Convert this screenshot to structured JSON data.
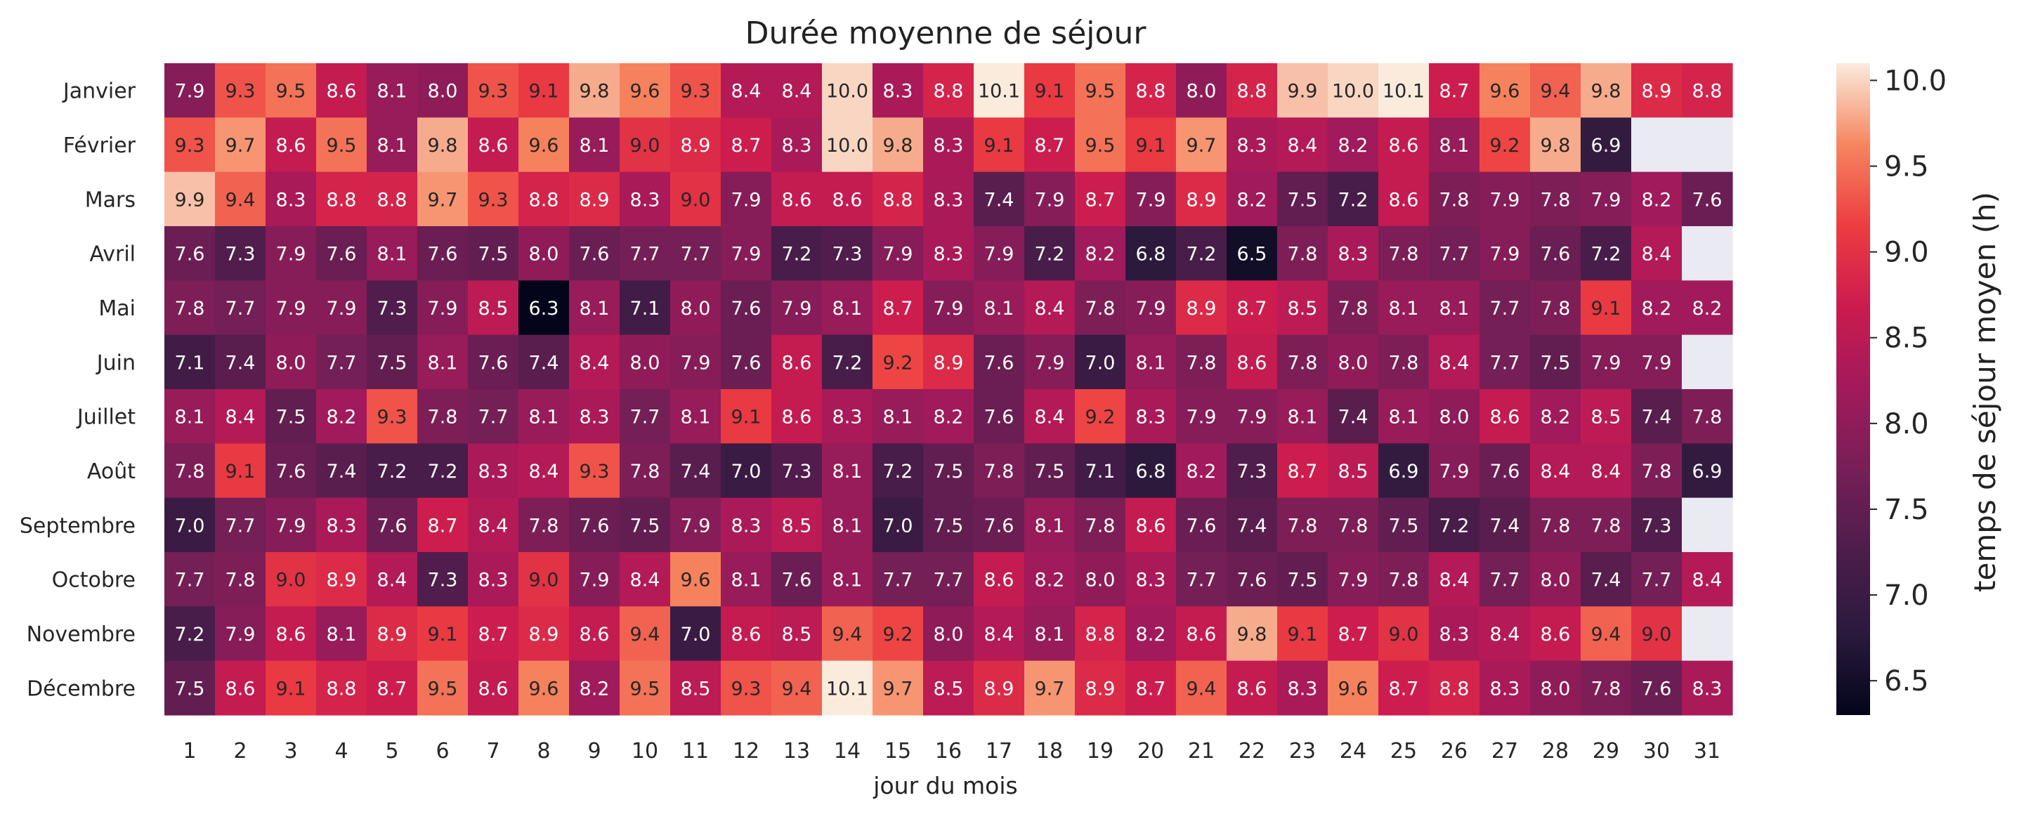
{
  "chart_data": {
    "type": "heatmap",
    "title": "Durée moyenne de séjour",
    "xlabel": "jour du mois",
    "ylabel": "",
    "x": [
      "1",
      "2",
      "3",
      "4",
      "5",
      "6",
      "7",
      "8",
      "9",
      "10",
      "11",
      "12",
      "13",
      "14",
      "15",
      "16",
      "17",
      "18",
      "19",
      "20",
      "21",
      "22",
      "23",
      "24",
      "25",
      "26",
      "27",
      "28",
      "29",
      "30",
      "31"
    ],
    "y": [
      "Janvier",
      "Février",
      "Mars",
      "Avril",
      "Mai",
      "Juin",
      "Juillet",
      "Août",
      "Septembre",
      "Octobre",
      "Novembre",
      "Décembre"
    ],
    "values": [
      [
        7.9,
        9.3,
        9.5,
        8.6,
        8.1,
        8.0,
        9.3,
        9.1,
        9.8,
        9.6,
        9.3,
        8.4,
        8.4,
        10.0,
        8.3,
        8.8,
        10.1,
        9.1,
        9.5,
        8.8,
        8.0,
        8.8,
        9.9,
        10.0,
        10.1,
        8.7,
        9.6,
        9.4,
        9.8,
        8.9,
        8.8
      ],
      [
        9.3,
        9.7,
        8.6,
        9.5,
        8.1,
        9.8,
        8.6,
        9.6,
        8.1,
        9.0,
        8.9,
        8.7,
        8.3,
        10.0,
        9.8,
        8.3,
        9.1,
        8.7,
        9.5,
        9.1,
        9.7,
        8.3,
        8.4,
        8.2,
        8.6,
        8.1,
        9.2,
        9.8,
        6.9,
        null,
        null
      ],
      [
        9.9,
        9.4,
        8.3,
        8.8,
        8.8,
        9.7,
        9.3,
        8.8,
        8.9,
        8.3,
        9.0,
        7.9,
        8.6,
        8.6,
        8.8,
        8.3,
        7.4,
        7.9,
        8.7,
        7.9,
        8.9,
        8.2,
        7.5,
        7.2,
        8.6,
        7.8,
        7.9,
        7.8,
        7.9,
        8.2,
        7.6
      ],
      [
        7.6,
        7.3,
        7.9,
        7.6,
        8.1,
        7.6,
        7.5,
        8.0,
        7.6,
        7.7,
        7.7,
        7.9,
        7.2,
        7.3,
        7.9,
        8.3,
        7.9,
        7.2,
        8.2,
        6.8,
        7.2,
        6.5,
        7.8,
        8.3,
        7.8,
        7.7,
        7.9,
        7.6,
        7.2,
        8.4,
        null
      ],
      [
        7.8,
        7.7,
        7.9,
        7.9,
        7.3,
        7.9,
        8.5,
        6.3,
        8.1,
        7.1,
        8.0,
        7.6,
        7.9,
        8.1,
        8.7,
        7.9,
        8.1,
        8.4,
        7.8,
        7.9,
        8.9,
        8.7,
        8.5,
        7.8,
        8.1,
        8.1,
        7.7,
        7.8,
        9.1,
        8.2,
        8.2
      ],
      [
        7.1,
        7.4,
        8.0,
        7.7,
        7.5,
        8.1,
        7.6,
        7.4,
        8.4,
        8.0,
        7.9,
        7.6,
        8.6,
        7.2,
        9.2,
        8.9,
        7.6,
        7.9,
        7.0,
        8.1,
        7.8,
        8.6,
        7.8,
        8.0,
        7.8,
        8.4,
        7.7,
        7.5,
        7.9,
        7.9,
        null
      ],
      [
        8.1,
        8.4,
        7.5,
        8.2,
        9.3,
        7.8,
        7.7,
        8.1,
        8.3,
        7.7,
        8.1,
        9.1,
        8.6,
        8.3,
        8.1,
        8.2,
        7.6,
        8.4,
        9.2,
        8.3,
        7.9,
        7.9,
        8.1,
        7.4,
        8.1,
        8.0,
        8.6,
        8.2,
        8.5,
        7.4,
        7.8
      ],
      [
        7.8,
        9.1,
        7.6,
        7.4,
        7.2,
        7.2,
        8.3,
        8.4,
        9.3,
        7.8,
        7.4,
        7.0,
        7.3,
        8.1,
        7.2,
        7.5,
        7.8,
        7.5,
        7.1,
        6.8,
        8.2,
        7.3,
        8.7,
        8.5,
        6.9,
        7.9,
        7.6,
        8.4,
        8.4,
        7.8,
        6.9
      ],
      [
        7.0,
        7.7,
        7.9,
        8.3,
        7.6,
        8.7,
        8.4,
        7.8,
        7.6,
        7.5,
        7.9,
        8.3,
        8.5,
        8.1,
        7.0,
        7.5,
        7.6,
        8.1,
        7.8,
        8.6,
        7.6,
        7.4,
        7.8,
        7.8,
        7.5,
        7.2,
        7.4,
        7.8,
        7.8,
        7.3,
        null
      ],
      [
        7.7,
        7.8,
        9.0,
        8.9,
        8.4,
        7.3,
        8.3,
        9.0,
        7.9,
        8.4,
        9.6,
        8.1,
        7.6,
        8.1,
        7.7,
        7.7,
        8.6,
        8.2,
        8.0,
        8.3,
        7.7,
        7.6,
        7.5,
        7.9,
        7.8,
        8.4,
        7.7,
        8.0,
        7.4,
        7.7,
        8.4
      ],
      [
        7.2,
        7.9,
        8.6,
        8.1,
        8.9,
        9.1,
        8.7,
        8.9,
        8.6,
        9.4,
        7.0,
        8.6,
        8.5,
        9.4,
        9.2,
        8.0,
        8.4,
        8.1,
        8.8,
        8.2,
        8.6,
        9.8,
        9.1,
        8.7,
        9.0,
        8.3,
        8.4,
        8.6,
        9.4,
        9.0,
        null
      ],
      [
        7.5,
        8.6,
        9.1,
        8.8,
        8.7,
        9.5,
        8.6,
        9.6,
        8.2,
        9.5,
        8.5,
        9.3,
        9.4,
        10.1,
        9.7,
        8.5,
        8.9,
        9.7,
        8.9,
        8.7,
        9.4,
        8.6,
        8.3,
        9.6,
        8.7,
        8.8,
        8.3,
        8.0,
        7.8,
        7.6,
        8.3
      ]
    ],
    "colorbar": {
      "label": "temps de séjour moyen (h)",
      "min": 6.3,
      "max": 10.1,
      "ticks": [
        "6.5",
        "7.0",
        "7.5",
        "8.0",
        "8.5",
        "9.0",
        "9.5",
        "10.0"
      ]
    },
    "colormap": "rocket",
    "missing_color": "#eaeaf2",
    "annotation_threshold": 9.0
  }
}
